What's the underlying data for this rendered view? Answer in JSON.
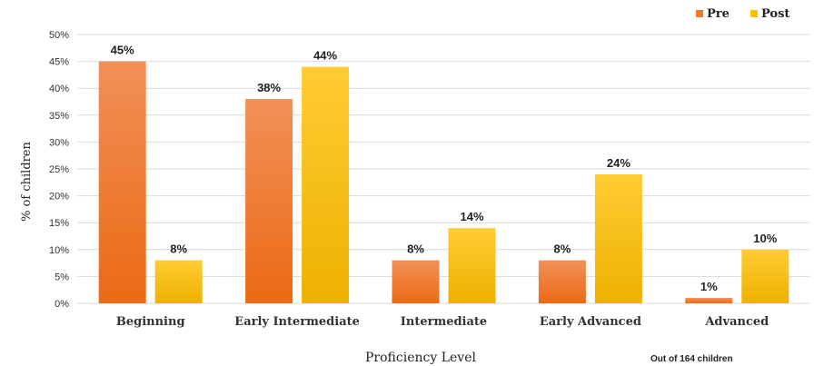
{
  "chart_data": {
    "type": "bar",
    "categories": [
      "Beginning",
      "Early Intermediate",
      "Intermediate",
      "Early Advanced",
      "Advanced"
    ],
    "series": [
      {
        "name": "Pre",
        "values": [
          45,
          38,
          8,
          8,
          1
        ],
        "color": "#F07A2A"
      },
      {
        "name": "Post",
        "values": [
          8,
          44,
          14,
          24,
          10
        ],
        "color": "#FFC000"
      }
    ],
    "data_labels": [
      [
        "45%",
        "38%",
        "8%",
        "8%",
        "1%"
      ],
      [
        "8%",
        "44%",
        "14%",
        "24%",
        "10%"
      ]
    ],
    "y_ticks": [
      0,
      5,
      10,
      15,
      20,
      25,
      30,
      35,
      40,
      45,
      50
    ],
    "y_tick_labels": [
      "0%",
      "5%",
      "10%",
      "15%",
      "20%",
      "25%",
      "30%",
      "35%",
      "40%",
      "45%",
      "50%"
    ],
    "ylim": [
      0,
      50
    ],
    "xlabel": "Proficiency Level",
    "ylabel": "% of children",
    "note": "Out of 164 children",
    "legend": [
      "Pre",
      "Post"
    ],
    "legend_position": "top-right",
    "grid": true
  }
}
